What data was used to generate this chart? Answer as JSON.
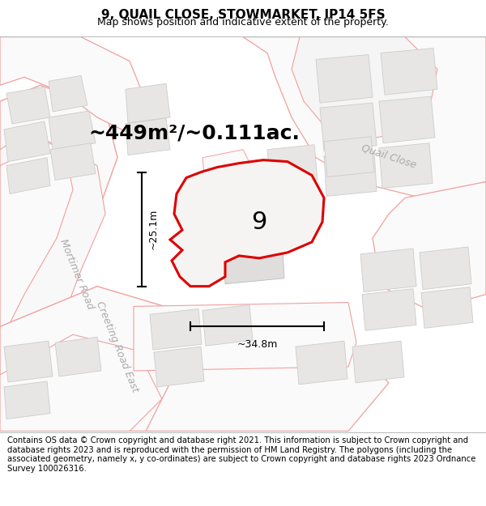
{
  "title_line1": "9, QUAIL CLOSE, STOWMARKET, IP14 5FS",
  "title_line2": "Map shows position and indicative extent of the property.",
  "footer_text": "Contains OS data © Crown copyright and database right 2021. This information is subject to Crown copyright and database rights 2023 and is reproduced with the permission of HM Land Registry. The polygons (including the associated geometry, namely x, y co-ordinates) are subject to Crown copyright and database rights 2023 Ordnance Survey 100026316.",
  "area_label": "~449m²/~0.111ac.",
  "property_number": "9",
  "dim_height": "~25.1m",
  "dim_width": "~34.8m",
  "road_label_1": "Quail Close",
  "road_label_2": "Mortimer Road",
  "road_label_3": "Creeting Road East",
  "map_bg": "#f5f4f2",
  "building_fill": "#e8e6e4",
  "building_edge": "#cccccc",
  "road_fill": "#fafafa",
  "road_edge_color": "#f0a0a0",
  "road_center_color": "#e0e0e0",
  "property_edge_color": "#dd0000",
  "property_fill": "#f5f4f2",
  "dim_line_color": "#000000",
  "title_fontsize": 11,
  "subtitle_fontsize": 9,
  "footer_fontsize": 7.2,
  "area_label_fontsize": 18,
  "property_number_fontsize": 22,
  "road_label_fontsize": 9,
  "road_label_color": "#aaaaaa"
}
